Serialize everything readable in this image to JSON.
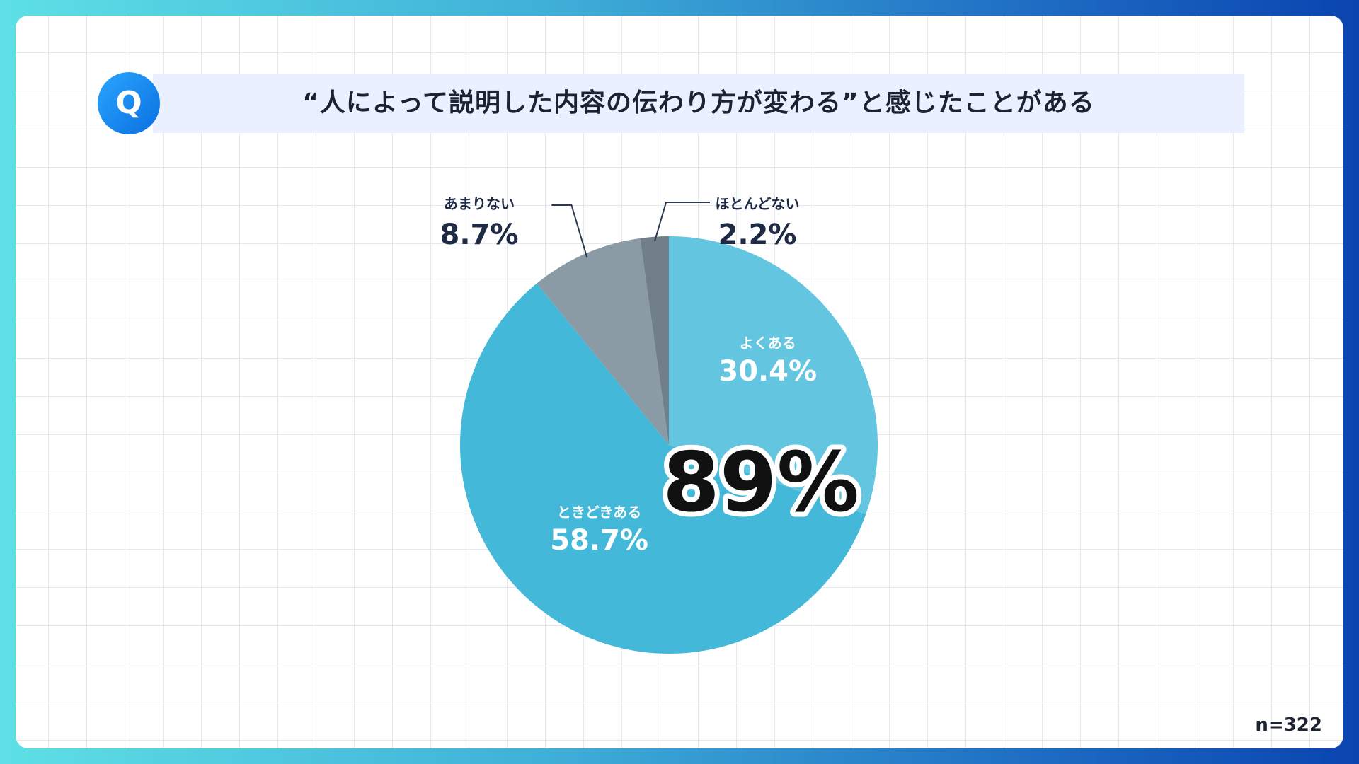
{
  "title": "“人によって説明した内容の伝わり方が変わる”と感じたことがある",
  "q_badge": {
    "icon": "q-icon",
    "letter": "Q",
    "color": "#1a8cf0"
  },
  "sample_size": "n=322",
  "highlight": "89%",
  "chart_data": {
    "type": "pie",
    "title": "“人によって説明した内容の伝わり方が変わる”と感じたことがある",
    "start_angle_deg": 0,
    "direction": "clockwise",
    "slices": [
      {
        "label": "よくある",
        "value": 30.4,
        "display": "30.4%",
        "color": "#64c5e0",
        "label_position": "inside"
      },
      {
        "label": "ときどきある",
        "value": 58.7,
        "display": "58.7%",
        "color": "#43b8d8",
        "label_position": "inside"
      },
      {
        "label": "あまりない",
        "value": 8.7,
        "display": "8.7%",
        "color": "#8a9ba5",
        "label_position": "outside-left"
      },
      {
        "label": "ほとんどない",
        "value": 2.2,
        "display": "2.2%",
        "color": "#707f89",
        "label_position": "outside-right"
      }
    ]
  }
}
